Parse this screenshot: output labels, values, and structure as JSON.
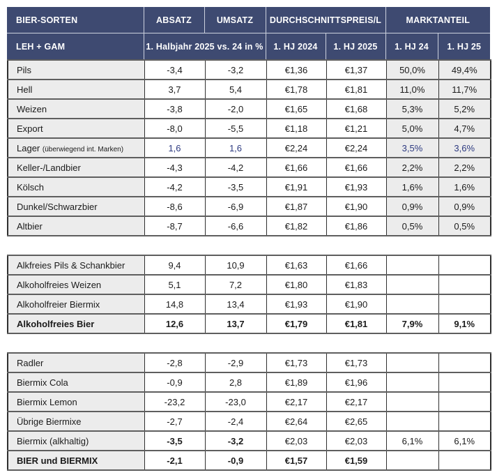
{
  "colors": {
    "header-bg": "#3e4a71",
    "header-text": "#ffffff",
    "label-bg": "#ececec",
    "accent": "#2d3a80",
    "text": "#1b1b1b"
  },
  "chart_data": {
    "type": "table",
    "title": "BIER-SORTEN — LEH + GAM",
    "header": {
      "row1": [
        {
          "text": "BIER-SORTEN",
          "colspan": 1
        },
        {
          "text": "ABSATZ",
          "colspan": 1
        },
        {
          "text": "UMSATZ",
          "colspan": 1
        },
        {
          "text": "DURCHSCHNITTSPREIS/L",
          "colspan": 2
        },
        {
          "text": "MARKTANTEIL",
          "colspan": 2
        }
      ],
      "row2": [
        {
          "text": "LEH + GAM",
          "colspan": 1
        },
        {
          "text": "1. Halbjahr 2025 vs. 24 in %",
          "colspan": 2
        },
        {
          "text": "1. HJ 2024",
          "colspan": 1
        },
        {
          "text": "1. HJ 2025",
          "colspan": 1
        },
        {
          "text": "1. HJ 24",
          "colspan": 1
        },
        {
          "text": "1. HJ 25",
          "colspan": 1
        }
      ]
    },
    "column_keys": [
      "sorte",
      "absatz_vs_vorjahr_pct",
      "umsatz_vs_vorjahr_pct",
      "preis_1_hj_2024",
      "preis_1_hj_2025",
      "marktanteil_1_hj_24",
      "marktanteil_1_hj_25"
    ],
    "groups": [
      {
        "shade_last_cols": true,
        "rows": [
          {
            "label": "Pils",
            "note": "",
            "values": [
              "-3,4",
              "-3,2",
              "€1,36",
              "€1,37",
              "50,0%",
              "49,4%"
            ],
            "bold_label": false,
            "bold_values": [],
            "accent_values": []
          },
          {
            "label": "Hell",
            "note": "",
            "values": [
              "3,7",
              "5,4",
              "€1,78",
              "€1,81",
              "11,0%",
              "11,7%"
            ],
            "bold_label": false,
            "bold_values": [],
            "accent_values": []
          },
          {
            "label": "Weizen",
            "note": "",
            "values": [
              "-3,8",
              "-2,0",
              "€1,65",
              "€1,68",
              "5,3%",
              "5,2%"
            ],
            "bold_label": false,
            "bold_values": [],
            "accent_values": []
          },
          {
            "label": "Export",
            "note": "",
            "values": [
              "-8,0",
              "-5,5",
              "€1,18",
              "€1,21",
              "5,0%",
              "4,7%"
            ],
            "bold_label": false,
            "bold_values": [],
            "accent_values": []
          },
          {
            "label": "Lager",
            "note": "(überwiegend int. Marken)",
            "values": [
              "1,6",
              "1,6",
              "€2,24",
              "€2,24",
              "3,5%",
              "3,6%"
            ],
            "bold_label": false,
            "bold_values": [],
            "accent_values": [
              0,
              1,
              4,
              5
            ]
          },
          {
            "label": "Keller-/Landbier",
            "note": "",
            "values": [
              "-4,3",
              "-4,2",
              "€1,66",
              "€1,66",
              "2,2%",
              "2,2%"
            ],
            "bold_label": false,
            "bold_values": [],
            "accent_values": []
          },
          {
            "label": "Kölsch",
            "note": "",
            "values": [
              "-4,2",
              "-3,5",
              "€1,91",
              "€1,93",
              "1,6%",
              "1,6%"
            ],
            "bold_label": false,
            "bold_values": [],
            "accent_values": []
          },
          {
            "label": "Dunkel/Schwarzbier",
            "note": "",
            "values": [
              "-8,6",
              "-6,9",
              "€1,87",
              "€1,90",
              "0,9%",
              "0,9%"
            ],
            "bold_label": false,
            "bold_values": [],
            "accent_values": []
          },
          {
            "label": "Altbier",
            "note": "",
            "values": [
              "-8,7",
              "-6,6",
              "€1,82",
              "€1,86",
              "0,5%",
              "0,5%"
            ],
            "bold_label": false,
            "bold_values": [],
            "accent_values": []
          }
        ]
      },
      {
        "shade_last_cols": false,
        "rows": [
          {
            "label": "Alkfreies Pils & Schankbier",
            "note": "",
            "values": [
              "9,4",
              "10,9",
              "€1,63",
              "€1,66",
              "",
              ""
            ],
            "bold_label": false,
            "bold_values": [],
            "accent_values": []
          },
          {
            "label": "Alkoholfreies Weizen",
            "note": "",
            "values": [
              "5,1",
              "7,2",
              "€1,80",
              "€1,83",
              "",
              ""
            ],
            "bold_label": false,
            "bold_values": [],
            "accent_values": []
          },
          {
            "label": "Alkoholfreier Biermix",
            "note": "",
            "values": [
              "14,8",
              "13,4",
              "€1,93",
              "€1,90",
              "",
              ""
            ],
            "bold_label": false,
            "bold_values": [],
            "accent_values": []
          },
          {
            "label": "Alkoholfreies Bier",
            "note": "",
            "values": [
              "12,6",
              "13,7",
              "€1,79",
              "€1,81",
              "7,9%",
              "9,1%"
            ],
            "bold_label": true,
            "bold_values": [
              0,
              1,
              2,
              3,
              4,
              5
            ],
            "accent_values": []
          }
        ]
      },
      {
        "shade_last_cols": false,
        "rows": [
          {
            "label": "Radler",
            "note": "",
            "values": [
              "-2,8",
              "-2,9",
              "€1,73",
              "€1,73",
              "",
              ""
            ],
            "bold_label": false,
            "bold_values": [],
            "accent_values": []
          },
          {
            "label": "Biermix Cola",
            "note": "",
            "values": [
              "-0,9",
              "2,8",
              "€1,89",
              "€1,96",
              "",
              ""
            ],
            "bold_label": false,
            "bold_values": [],
            "accent_values": []
          },
          {
            "label": "Biermix Lemon",
            "note": "",
            "values": [
              "-23,2",
              "-23,0",
              "€2,17",
              "€2,17",
              "",
              ""
            ],
            "bold_label": false,
            "bold_values": [],
            "accent_values": []
          },
          {
            "label": "Übrige Biermixe",
            "note": "",
            "values": [
              "-2,7",
              "-2,4",
              "€2,64",
              "€2,65",
              "",
              ""
            ],
            "bold_label": false,
            "bold_values": [],
            "accent_values": []
          },
          {
            "label": "Biermix (alkhaltig)",
            "note": "",
            "values": [
              "-3,5",
              "-3,2",
              "€2,03",
              "€2,03",
              "6,1%",
              "6,1%"
            ],
            "bold_label": false,
            "bold_values": [
              0,
              1
            ],
            "accent_values": []
          },
          {
            "label": "BIER und BIERMIX",
            "note": "",
            "values": [
              "-2,1",
              "-0,9",
              "€1,57",
              "€1,59",
              "",
              ""
            ],
            "bold_label": true,
            "bold_values": [
              0,
              1,
              2,
              3
            ],
            "accent_values": []
          }
        ]
      }
    ]
  }
}
